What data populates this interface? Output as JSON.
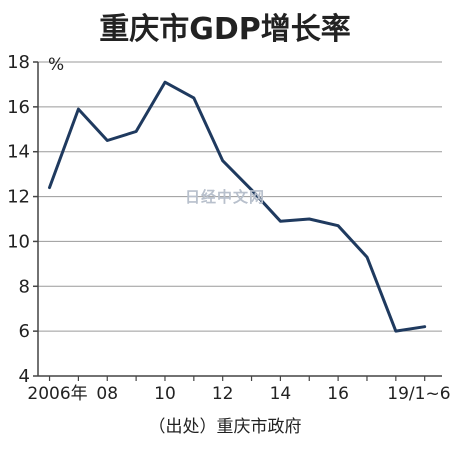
{
  "chart_data": {
    "type": "line",
    "title": "重庆市GDP增长率",
    "ylabel": "%",
    "xlabel": "",
    "ylim": [
      4,
      18
    ],
    "yticks": [
      4,
      6,
      8,
      10,
      12,
      14,
      16,
      18
    ],
    "x": [
      2006,
      2007,
      2008,
      2009,
      2010,
      2011,
      2012,
      2013,
      2014,
      2015,
      2016,
      2017,
      2018,
      2019
    ],
    "xtick_labels": [
      {
        "x": 2006,
        "label": "2006年"
      },
      {
        "x": 2008,
        "label": "08"
      },
      {
        "x": 2010,
        "label": "10"
      },
      {
        "x": 2012,
        "label": "12"
      },
      {
        "x": 2014,
        "label": "14"
      },
      {
        "x": 2016,
        "label": "16"
      },
      {
        "x": 2018.8,
        "label": "19/1~6"
      }
    ],
    "series": [
      {
        "values": [
          12.4,
          15.9,
          14.5,
          14.9,
          17.1,
          16.4,
          13.6,
          12.3,
          10.9,
          11.0,
          10.7,
          9.3,
          6.0,
          6.2
        ],
        "color": "#1f3a5f"
      }
    ],
    "grid": true,
    "source": "（出处）重庆市政府"
  },
  "watermark": "日经中文网"
}
